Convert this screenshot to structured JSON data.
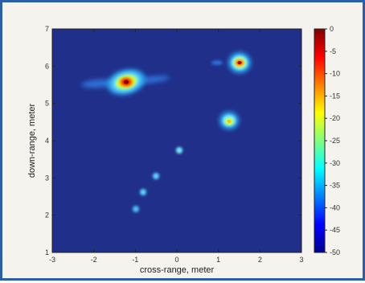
{
  "chart_data": {
    "type": "heatmap",
    "xlabel": "cross-range, meter",
    "ylabel": "down-range, meter",
    "xlim": [
      -3,
      3
    ],
    "ylim": [
      1,
      7
    ],
    "x_ticks": [
      "-3",
      "-2",
      "-1",
      "0",
      "1",
      "2",
      "3"
    ],
    "y_ticks": [
      "1",
      "2",
      "3",
      "4",
      "5",
      "6",
      "7"
    ],
    "colorbar": {
      "range": [
        -50,
        0
      ],
      "ticks": [
        "0",
        "-5",
        "-10",
        "-15",
        "-20",
        "-25",
        "-30",
        "-35",
        "-40",
        "-45",
        "-50"
      ],
      "colormap": "jet"
    },
    "background_color": "#1f2f8a",
    "peaks": [
      {
        "x": -1.2,
        "y": 5.55,
        "value": 0
      },
      {
        "x": 1.5,
        "y": 6.1,
        "value": -2
      },
      {
        "x": 1.25,
        "y": 4.5,
        "value": -15
      },
      {
        "x": 0.05,
        "y": 3.75,
        "value": -32
      },
      {
        "x": -0.45,
        "y": 3.05,
        "value": -34
      },
      {
        "x": -0.8,
        "y": 2.6,
        "value": -35
      },
      {
        "x": -0.95,
        "y": 2.15,
        "value": -36
      },
      {
        "x": -2.2,
        "y": 5.25,
        "value": -35
      },
      {
        "x": -0.4,
        "y": 5.65,
        "value": -34
      },
      {
        "x": 1.0,
        "y": 6.15,
        "value": -36
      }
    ]
  }
}
